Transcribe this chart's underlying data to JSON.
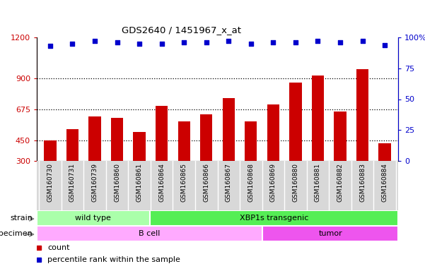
{
  "title": "GDS2640 / 1451967_x_at",
  "samples": [
    "GSM160730",
    "GSM160731",
    "GSM160739",
    "GSM160860",
    "GSM160861",
    "GSM160864",
    "GSM160865",
    "GSM160866",
    "GSM160867",
    "GSM160868",
    "GSM160869",
    "GSM160880",
    "GSM160881",
    "GSM160882",
    "GSM160883",
    "GSM160884"
  ],
  "counts": [
    450,
    530,
    625,
    615,
    510,
    700,
    590,
    640,
    760,
    590,
    710,
    870,
    920,
    660,
    970,
    430
  ],
  "percentile_ranks": [
    93,
    95,
    97,
    96,
    95,
    95,
    96,
    96,
    97,
    95,
    96,
    96,
    97,
    96,
    97,
    94
  ],
  "bar_color": "#cc0000",
  "dot_color": "#0000cc",
  "ylim_left": [
    300,
    1200
  ],
  "yticks_left": [
    300,
    450,
    675,
    900,
    1200
  ],
  "ylim_right": [
    0,
    100
  ],
  "yticks_right": [
    0,
    25,
    50,
    75,
    100
  ],
  "ylabel_left_color": "#cc0000",
  "ylabel_right_color": "#0000cc",
  "grid_color": "#000000",
  "strain_labels": [
    {
      "label": "wild type",
      "start": 0,
      "end": 5,
      "color": "#aaffaa"
    },
    {
      "label": "XBP1s transgenic",
      "start": 5,
      "end": 16,
      "color": "#55ee55"
    }
  ],
  "specimen_labels": [
    {
      "label": "B cell",
      "start": 0,
      "end": 10,
      "color": "#ffaaff"
    },
    {
      "label": "tumor",
      "start": 10,
      "end": 16,
      "color": "#ee55ee"
    }
  ],
  "legend_count_color": "#cc0000",
  "legend_dot_color": "#0000cc",
  "background_color": "#ffffff",
  "plot_bg_color": "#ffffff",
  "bar_bottom": 300,
  "xtick_bg_color": "#d8d8d8"
}
